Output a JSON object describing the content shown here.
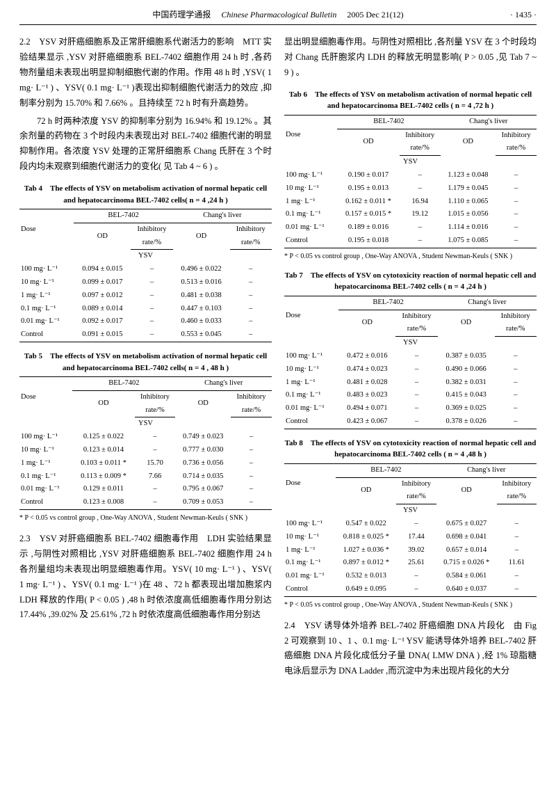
{
  "header": {
    "journal_cn": "中国药理学通报",
    "journal_en": "Chinese Pharmacological Bulletin",
    "issue": "2005 Dec 21(12)",
    "page": "· 1435 ·"
  },
  "left_col": {
    "p1": "2.2　YSV 对肝癌细胞系及正常肝细胞系代谢活力的影响　MTT 实验结果显示 ,YSV 对肝癌细胞系 BEL-7402 细胞作用 24 h 时 ,各药物剂量组未表现出明显抑制细胞代谢的作用。作用 48 h 时 ,YSV( 1 mg· L⁻¹ ) 、YSV( 0.1 mg· L⁻¹ )表现出抑制细胞代谢活力的效应 ,抑制率分别为 15.70% 和 7.66% 。且持续至 72 h 时有升高趋势。",
    "p2": "72 h 时两种浓度 YSV 的抑制率分别为 16.94% 和 19.12% 。其余剂量的药物在 3 个时段内未表现出对 BEL-7402 细胞代谢的明显抑制作用。各浓度 YSV 处理的正常肝细胞系 Chang 氏肝在 3 个时段内均未观察到细胞代谢活力的变化( 见 Tab 4 ~ 6 ) 。",
    "tab4_title": "Tab 4　The effects of YSV on metabolism activation of normal hepatic cell and hepatocarcinoma BEL-7402 cells( n = 4 ,24 h )",
    "tab5_title": "Tab 5　The effects of YSV on metabolism activation of normal hepatic cell and hepatocarcinoma BEL-7402 cells( n = 4 , 48 h )",
    "tab5_foot": "* P < 0.05 vs control group , One-Way ANOVA , Student Newman-Keuls ( SNK )",
    "p3": "2.3　YSV 对肝癌细胞系 BEL-7402 细胞毒作用　LDH 实验结果显示 ,与阴性对照相比 ,YSV 对肝癌细胞系 BEL-7402 细胞作用 24 h 各剂量组均未表现出明显细胞毒作用。YSV( 10 mg· L⁻¹ ) 、YSV( 1 mg· L⁻¹ ) 、YSV( 0.1 mg· L⁻¹ )在 48 、72 h 都表现出增加胞浆内 LDH 释放的作用( P < 0.05 ) ,48 h 时依浓度高低细胞毒作用分别达 17.44% ,39.02% 及 25.61% ,72 h 时依浓度高低细胞毒作用分别达"
  },
  "right_col": {
    "p1": "显出明显细胞毒作用。与阴性对照相比 ,各剂量 YSV 在 3 个时段均对 Chang 氏肝胞浆内 LDH 的释放无明显影响( P > 0.05 ,见 Tab 7 ~ 9 ) 。",
    "tab6_title": "Tab 6　The effects of YSV on metabolism activation of normal hepatic cell and hepatocarcinoma BEL-7402 cells ( n = 4 ,72 h )",
    "tab6_foot": "* P < 0.05 vs control group , One-Way ANOVA , Student Newman-Keuls ( SNK )",
    "tab7_title": "Tab 7　The effects of YSV on cytotoxicity reaction of normal hepatic cell and hepatocarcinoma BEL-7402 cells ( n = 4 ,24 h )",
    "tab8_title": "Tab 8　The effects of YSV on cytotoxicity reaction of normal hepatic cell and hepatocarcinoma BEL-7402 cells ( n = 4 ,48 h )",
    "tab8_foot": "* P < 0.05 vs control group , One-Way ANOVA , Student Newman-Keuls ( SNK )",
    "p2": "2.4　YSV 诱导体外培养 BEL-7402 肝癌细胞 DNA 片段化　由 Fig 2 可观察到 10 、1 、0.1 mg· L⁻¹ YSV 能诱导体外培养 BEL-7402 肝癌细胞 DNA 片段化成低分子量 DNA( LMW DNA ) ,经 1% 琼脂糖电泳后显示为 DNA Ladder ,而沉淀中为未出现片段化的大分"
  },
  "th": {
    "dose": "Dose",
    "bel": "BEL-7402",
    "chang": "Chang's liver",
    "od": "OD",
    "inh": "Inhibitory",
    "rate": "rate/%",
    "ysv": "YSV"
  },
  "doses": {
    "d100": "100 mg· L⁻¹",
    "d10": "10 mg· L⁻¹",
    "d1": "1 mg· L⁻¹",
    "d01": "0.1 mg· L⁻¹",
    "d001": "0.01 mg· L⁻¹",
    "ctrl": "Control"
  },
  "tab4": {
    "r1": {
      "od1": "0.094 ± 0.015",
      "i1": "–",
      "od2": "0.496 ± 0.022",
      "i2": "–"
    },
    "r2": {
      "od1": "0.099 ± 0.017",
      "i1": "–",
      "od2": "0.513 ± 0.016",
      "i2": "–"
    },
    "r3": {
      "od1": "0.097 ± 0.012",
      "i1": "–",
      "od2": "0.481 ± 0.038",
      "i2": "–"
    },
    "r4": {
      "od1": "0.089 ± 0.014",
      "i1": "–",
      "od2": "0.447 ± 0.103",
      "i2": "–"
    },
    "r5": {
      "od1": "0.092 ± 0.017",
      "i1": "–",
      "od2": "0.460 ± 0.033",
      "i2": "–"
    },
    "r6": {
      "od1": "0.091 ± 0.015",
      "i1": "–",
      "od2": "0.553 ± 0.045",
      "i2": "–"
    }
  },
  "tab5": {
    "r1": {
      "od1": "0.125 ± 0.022",
      "i1": "–",
      "od2": "0.749 ± 0.023",
      "i2": "–"
    },
    "r2": {
      "od1": "0.123 ± 0.014",
      "i1": "–",
      "od2": "0.777 ± 0.030",
      "i2": "–"
    },
    "r3": {
      "od1": "0.103 ± 0.011 *",
      "i1": "15.70",
      "od2": "0.736 ± 0.056",
      "i2": "–"
    },
    "r4": {
      "od1": "0.113 ± 0.009 *",
      "i1": "7.66",
      "od2": "0.714 ± 0.035",
      "i2": "–"
    },
    "r5": {
      "od1": "0.129 ± 0.011",
      "i1": "–",
      "od2": "0.795 ± 0.067",
      "i2": "–"
    },
    "r6": {
      "od1": "0.123 ± 0.008",
      "i1": "–",
      "od2": "0.709 ± 0.053",
      "i2": "–"
    }
  },
  "tab6": {
    "r1": {
      "od1": "0.190 ± 0.017",
      "i1": "–",
      "od2": "1.123 ± 0.048",
      "i2": "–"
    },
    "r2": {
      "od1": "0.195 ± 0.013",
      "i1": "–",
      "od2": "1.179 ± 0.045",
      "i2": "–"
    },
    "r3": {
      "od1": "0.162 ± 0.011 *",
      "i1": "16.94",
      "od2": "1.110 ± 0.065",
      "i2": "–"
    },
    "r4": {
      "od1": "0.157 ± 0.015 *",
      "i1": "19.12",
      "od2": "1.015 ± 0.056",
      "i2": "–"
    },
    "r5": {
      "od1": "0.189 ± 0.016",
      "i1": "–",
      "od2": "1.114 ± 0.016",
      "i2": "–"
    },
    "r6": {
      "od1": "0.195 ± 0.018",
      "i1": "–",
      "od2": "1.075 ± 0.085",
      "i2": "–"
    }
  },
  "tab7": {
    "r1": {
      "od1": "0.472 ± 0.016",
      "i1": "–",
      "od2": "0.387 ± 0.035",
      "i2": "–"
    },
    "r2": {
      "od1": "0.474 ± 0.023",
      "i1": "–",
      "od2": "0.490 ± 0.066",
      "i2": "–"
    },
    "r3": {
      "od1": "0.481 ± 0.028",
      "i1": "–",
      "od2": "0.382 ± 0.031",
      "i2": "–"
    },
    "r4": {
      "od1": "0.483 ± 0.023",
      "i1": "–",
      "od2": "0.415 ± 0.043",
      "i2": "–"
    },
    "r5": {
      "od1": "0.494 ± 0.071",
      "i1": "–",
      "od2": "0.369 ± 0.025",
      "i2": "–"
    },
    "r6": {
      "od1": "0.423 ± 0.067",
      "i1": "–",
      "od2": "0.378 ± 0.026",
      "i2": "–"
    }
  },
  "tab8": {
    "r1": {
      "od1": "0.547 ± 0.022",
      "i1": "–",
      "od2": "0.675 ± 0.027",
      "i2": "–"
    },
    "r2": {
      "od1": "0.818 ± 0.025 *",
      "i1": "17.44",
      "od2": "0.698 ± 0.041",
      "i2": "–"
    },
    "r3": {
      "od1": "1.027 ± 0.036 *",
      "i1": "39.02",
      "od2": "0.657 ± 0.014",
      "i2": "–"
    },
    "r4": {
      "od1": "0.897 ± 0.012 *",
      "i1": "25.61",
      "od2": "0.715 ± 0.026 *",
      "i2": "11.61"
    },
    "r5": {
      "od1": "0.532 ± 0.013",
      "i1": "–",
      "od2": "0.584 ± 0.061",
      "i2": "–"
    },
    "r6": {
      "od1": "0.649 ± 0.095",
      "i1": "–",
      "od2": "0.640 ± 0.037",
      "i2": "–"
    }
  }
}
